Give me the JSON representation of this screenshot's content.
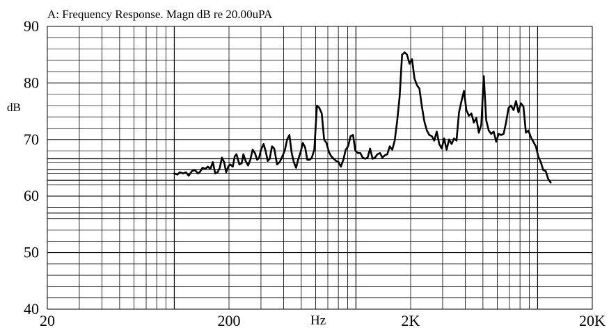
{
  "chart_data": {
    "type": "line",
    "title": "A: Frequency Response. Magn dB re 20.00uPA",
    "ylabel": "dB",
    "xlabel": "Hz",
    "x_scale": "log",
    "xlim": [
      20,
      20000
    ],
    "ylim": [
      40,
      90
    ],
    "x_tick_labels": [
      {
        "value": 20,
        "label": "20"
      },
      {
        "value": 200,
        "label": "200"
      },
      {
        "value": 2000,
        "label": "2K"
      },
      {
        "value": 20000,
        "label": "20K"
      }
    ],
    "y_tick_labels": [
      {
        "value": 90,
        "label": "90"
      },
      {
        "value": 80,
        "label": "80"
      },
      {
        "value": 70,
        "label": "70"
      },
      {
        "value": 60,
        "label": "60"
      },
      {
        "value": 50,
        "label": "50"
      },
      {
        "value": 40,
        "label": "40"
      }
    ],
    "grid": true,
    "series": [
      {
        "values": [
          [
            100,
            64.0
          ],
          [
            104,
            63.8
          ],
          [
            107,
            64.2
          ],
          [
            112,
            64.0
          ],
          [
            116,
            64.2
          ],
          [
            120,
            63.6
          ],
          [
            125,
            64.4
          ],
          [
            130,
            64.6
          ],
          [
            135,
            64.0
          ],
          [
            138,
            64.2
          ],
          [
            143,
            65.0
          ],
          [
            148,
            64.8
          ],
          [
            153,
            65.2
          ],
          [
            158,
            64.8
          ],
          [
            163,
            66.0
          ],
          [
            168,
            64.0
          ],
          [
            173,
            64.2
          ],
          [
            178,
            65.0
          ],
          [
            183,
            66.8
          ],
          [
            188,
            66.0
          ],
          [
            193,
            64.2
          ],
          [
            198,
            65.2
          ],
          [
            203,
            65.6
          ],
          [
            210,
            65.2
          ],
          [
            215,
            67.0
          ],
          [
            220,
            67.4
          ],
          [
            228,
            65.6
          ],
          [
            235,
            65.8
          ],
          [
            240,
            67.4
          ],
          [
            247,
            66.2
          ],
          [
            255,
            65.4
          ],
          [
            262,
            66.4
          ],
          [
            270,
            68.2
          ],
          [
            278,
            67.6
          ],
          [
            286,
            66.4
          ],
          [
            293,
            66.8
          ],
          [
            300,
            68.2
          ],
          [
            310,
            69.2
          ],
          [
            318,
            68.0
          ],
          [
            327,
            66.2
          ],
          [
            335,
            66.6
          ],
          [
            345,
            68.8
          ],
          [
            355,
            68.4
          ],
          [
            368,
            65.6
          ],
          [
            380,
            66.0
          ],
          [
            393,
            67.0
          ],
          [
            405,
            68.0
          ],
          [
            418,
            70.0
          ],
          [
            430,
            70.8
          ],
          [
            443,
            67.6
          ],
          [
            455,
            66.0
          ],
          [
            468,
            65.0
          ],
          [
            482,
            66.6
          ],
          [
            496,
            67.8
          ],
          [
            510,
            69.4
          ],
          [
            525,
            68.6
          ],
          [
            540,
            66.4
          ],
          [
            556,
            66.4
          ],
          [
            572,
            66.8
          ],
          [
            590,
            68.2
          ],
          [
            610,
            76.0
          ],
          [
            628,
            75.6
          ],
          [
            648,
            74.6
          ],
          [
            668,
            70.0
          ],
          [
            688,
            69.4
          ],
          [
            710,
            67.8
          ],
          [
            732,
            67.0
          ],
          [
            755,
            66.6
          ],
          [
            778,
            66.2
          ],
          [
            802,
            66.0
          ],
          [
            826,
            65.2
          ],
          [
            852,
            66.4
          ],
          [
            878,
            68.2
          ],
          [
            906,
            68.8
          ],
          [
            934,
            70.6
          ],
          [
            963,
            70.8
          ],
          [
            993,
            68.0
          ],
          [
            1024,
            67.6
          ],
          [
            1056,
            67.6
          ],
          [
            1089,
            66.8
          ],
          [
            1124,
            66.6
          ],
          [
            1159,
            66.8
          ],
          [
            1196,
            68.4
          ],
          [
            1234,
            66.6
          ],
          [
            1273,
            66.8
          ],
          [
            1313,
            67.4
          ],
          [
            1355,
            67.6
          ],
          [
            1398,
            66.8
          ],
          [
            1442,
            67.2
          ],
          [
            1488,
            67.4
          ],
          [
            1535,
            68.8
          ],
          [
            1584,
            68.2
          ],
          [
            1634,
            69.8
          ],
          [
            1686,
            73.2
          ],
          [
            1740,
            77.6
          ],
          [
            1795,
            85.0
          ],
          [
            1852,
            85.4
          ],
          [
            1911,
            85.0
          ],
          [
            1972,
            83.4
          ],
          [
            2035,
            84.2
          ],
          [
            2100,
            80.8
          ],
          [
            2167,
            79.6
          ],
          [
            2236,
            79.0
          ],
          [
            2307,
            75.8
          ],
          [
            2380,
            73.2
          ],
          [
            2456,
            71.6
          ],
          [
            2534,
            70.8
          ],
          [
            2615,
            70.6
          ],
          [
            2698,
            69.8
          ],
          [
            2784,
            71.4
          ],
          [
            2873,
            69.2
          ],
          [
            2964,
            68.4
          ],
          [
            3058,
            70.2
          ],
          [
            3156,
            68.2
          ],
          [
            3256,
            70.0
          ],
          [
            3360,
            69.2
          ],
          [
            3467,
            70.2
          ],
          [
            3578,
            69.8
          ],
          [
            3692,
            74.8
          ],
          [
            3810,
            76.8
          ],
          [
            3931,
            78.6
          ],
          [
            4056,
            75.2
          ],
          [
            4186,
            74.2
          ],
          [
            4319,
            74.6
          ],
          [
            4457,
            73.0
          ],
          [
            4599,
            73.8
          ],
          [
            4746,
            71.2
          ],
          [
            4898,
            72.6
          ],
          [
            5054,
            81.2
          ],
          [
            5215,
            73.4
          ],
          [
            5382,
            71.6
          ],
          [
            5553,
            71.0
          ],
          [
            5731,
            71.4
          ],
          [
            5913,
            69.6
          ],
          [
            6102,
            71.0
          ],
          [
            6297,
            70.8
          ],
          [
            6498,
            71.0
          ],
          [
            6705,
            73.0
          ],
          [
            6919,
            75.6
          ],
          [
            7140,
            76.0
          ],
          [
            7368,
            75.2
          ],
          [
            7603,
            76.8
          ],
          [
            7846,
            74.8
          ],
          [
            8096,
            76.4
          ],
          [
            8355,
            75.8
          ],
          [
            8621,
            71.2
          ],
          [
            8896,
            71.6
          ],
          [
            9180,
            70.4
          ],
          [
            9473,
            69.6
          ],
          [
            9776,
            68.8
          ],
          [
            10088,
            67.0
          ],
          [
            10410,
            66.0
          ],
          [
            10742,
            64.6
          ],
          [
            11085,
            64.4
          ],
          [
            11439,
            63.0
          ],
          [
            11804,
            62.4
          ]
        ]
      }
    ]
  }
}
